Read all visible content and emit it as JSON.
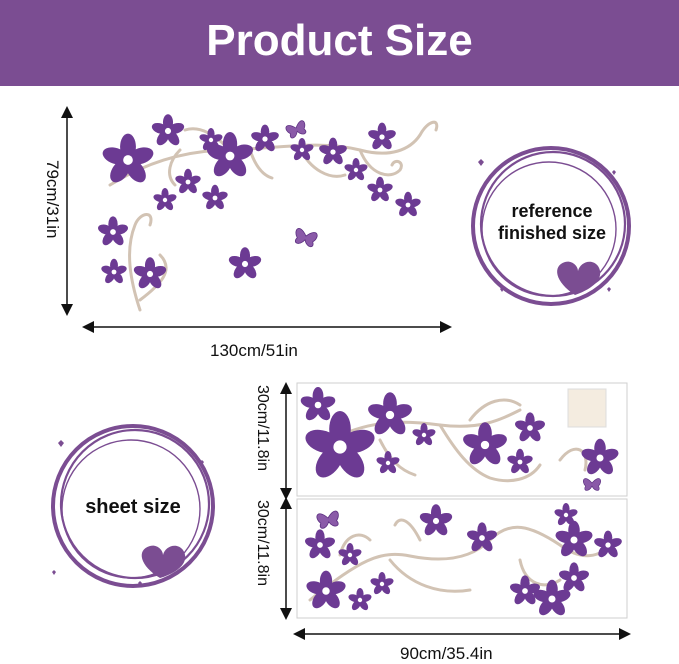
{
  "header": {
    "title": "Product Size"
  },
  "finished": {
    "height_label": "79cm/31in",
    "width_label": "130cm/51in",
    "badge_line1": "reference",
    "badge_line2": "finished size"
  },
  "sheet": {
    "badge_label": "sheet size",
    "top_height_label": "30cm/11.8in",
    "bottom_height_label": "30cm/11.8in",
    "width_label": "90cm/35.4in"
  },
  "colors": {
    "brand_purple": "#7b4d92",
    "flower_purple": "#6c3a93",
    "vine_beige": "#d2c3b4",
    "dim_line": "#111111"
  }
}
